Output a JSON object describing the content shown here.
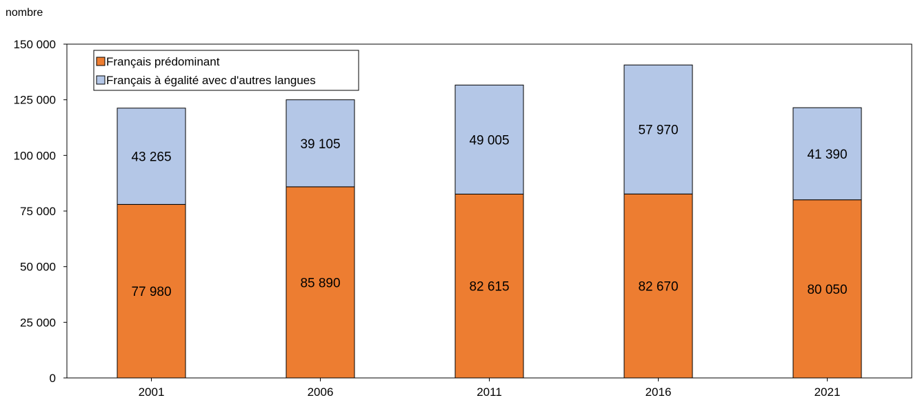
{
  "chart_data": {
    "type": "bar",
    "stacked": true,
    "ylabel": "nombre",
    "xlabel": "",
    "ylim": [
      0,
      150000
    ],
    "yticks": [
      0,
      25000,
      50000,
      75000,
      100000,
      125000,
      150000
    ],
    "ytick_labels": [
      "0",
      "25 000",
      "50 000",
      "75 000",
      "100 000",
      "125 000",
      "150 000"
    ],
    "categories": [
      "2001",
      "2006",
      "2011",
      "2016",
      "2021"
    ],
    "series": [
      {
        "name": "Français prédominant",
        "color": "#ED7D31",
        "values": [
          77980,
          85890,
          82615,
          82670,
          80050
        ],
        "labels": [
          "77 980",
          "85 890",
          "82 615",
          "82 670",
          "80 050"
        ]
      },
      {
        "name": "Français à égalité avec d'autres langues",
        "color": "#B4C7E7",
        "values": [
          43265,
          39105,
          49005,
          57970,
          41390
        ],
        "labels": [
          "43 265",
          "39 105",
          "49 005",
          "57 970",
          "41 390"
        ]
      }
    ],
    "legend_position": "top-left",
    "grid": false
  }
}
